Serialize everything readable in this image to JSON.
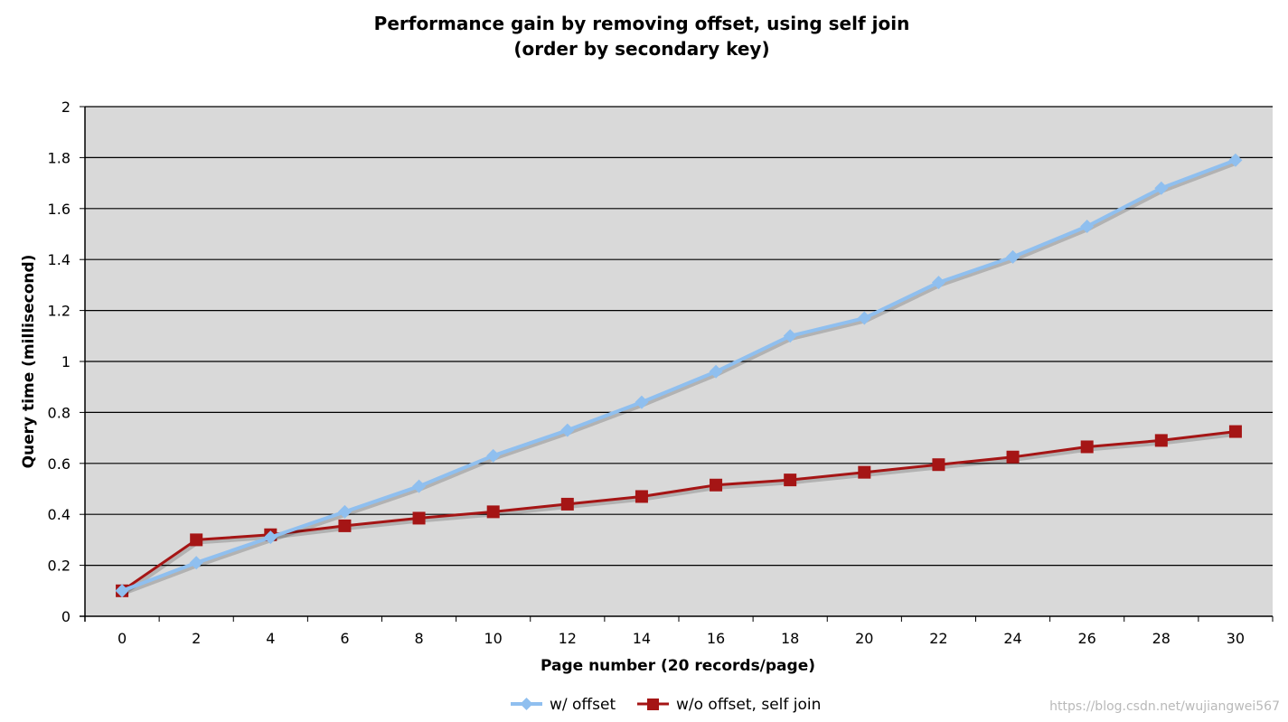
{
  "chart_data": {
    "type": "line",
    "title": "Performance gain by removing offset, using self join",
    "subtitle": "(order by secondary key)",
    "xlabel": "Page number (20 records/page)",
    "ylabel": "Query time (millisecond)",
    "x": [
      0,
      2,
      4,
      6,
      8,
      10,
      12,
      14,
      16,
      18,
      20,
      22,
      24,
      26,
      28,
      30
    ],
    "ylim": [
      0,
      2
    ],
    "yticks": [
      0,
      0.2,
      0.4,
      0.6,
      0.8,
      1,
      1.2,
      1.4,
      1.6,
      1.8,
      2
    ],
    "ytick_labels": [
      "0",
      "0.2",
      "0.4",
      "0.6",
      "0.8",
      "1",
      "1.2",
      "1.4",
      "1.6",
      "1.8",
      "2"
    ],
    "grid": true,
    "legend_position": "bottom",
    "series": [
      {
        "name": "w/ offset",
        "color": "#8fbfef",
        "marker": "diamond",
        "values": [
          0.1,
          0.21,
          0.31,
          0.41,
          0.51,
          0.63,
          0.73,
          0.84,
          0.96,
          1.1,
          1.17,
          1.31,
          1.41,
          1.53,
          1.68,
          1.79
        ]
      },
      {
        "name": "w/o offset, self join",
        "color": "#a51515",
        "marker": "square",
        "values": [
          0.1,
          0.3,
          0.32,
          0.355,
          0.385,
          0.41,
          0.44,
          0.47,
          0.515,
          0.535,
          0.565,
          0.595,
          0.625,
          0.665,
          0.69,
          0.725
        ]
      }
    ]
  },
  "watermark": "https://blog.csdn.net/wujiangwei567"
}
